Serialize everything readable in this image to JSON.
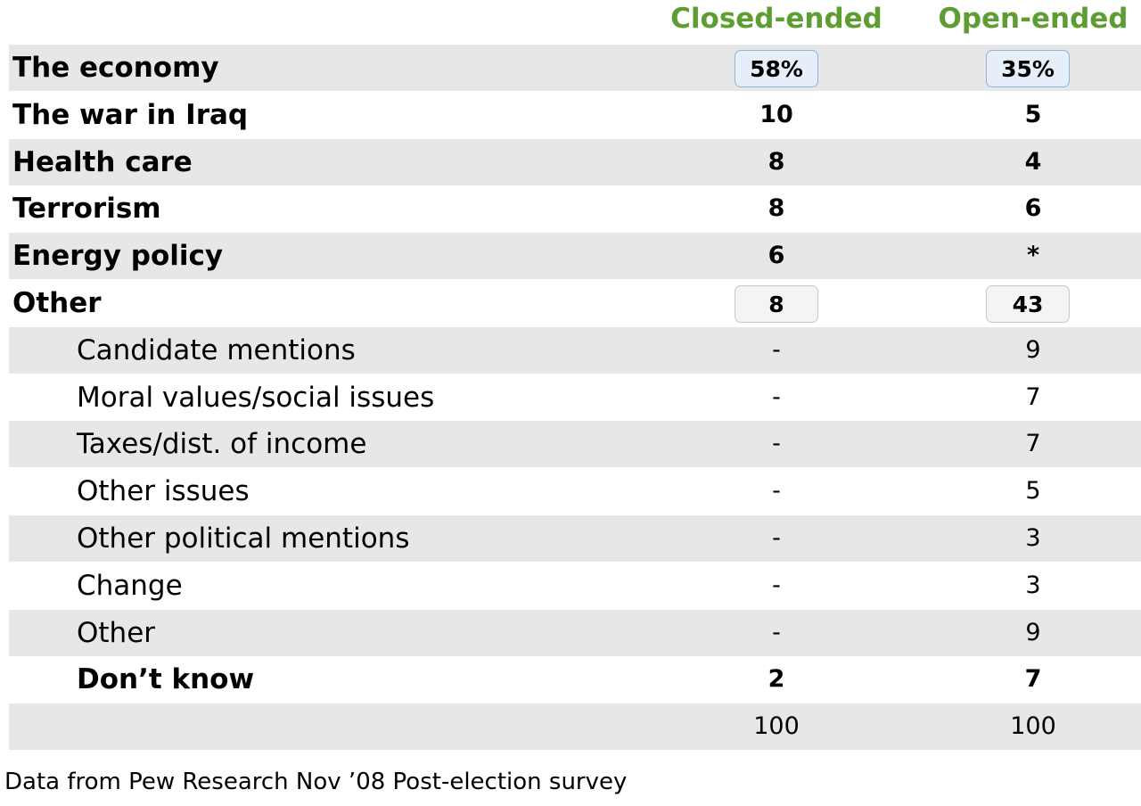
{
  "chart_data": {
    "type": "table",
    "columns": [
      "Closed-ended",
      "Open-ended"
    ],
    "rows": [
      {
        "label": "The economy",
        "level": 0,
        "closed": "58%",
        "open": "35%",
        "highlight": "blue"
      },
      {
        "label": "The war in Iraq",
        "level": 0,
        "closed": "10",
        "open": "5"
      },
      {
        "label": "Health care",
        "level": 0,
        "closed": "8",
        "open": "4"
      },
      {
        "label": "Terrorism",
        "level": 0,
        "closed": "8",
        "open": "6"
      },
      {
        "label": "Energy policy",
        "level": 0,
        "closed": "6",
        "open": "*"
      },
      {
        "label": "Other",
        "level": 0,
        "closed": "8",
        "open": "43",
        "highlight": "gray"
      },
      {
        "label": "Candidate mentions",
        "level": 1,
        "closed": "-",
        "open": "9"
      },
      {
        "label": "Moral values/social issues",
        "level": 1,
        "closed": "-",
        "open": "7"
      },
      {
        "label": "Taxes/dist. of income",
        "level": 1,
        "closed": "-",
        "open": "7"
      },
      {
        "label": "Other issues",
        "level": 1,
        "closed": "-",
        "open": "5"
      },
      {
        "label": "Other political mentions",
        "level": 1,
        "closed": "-",
        "open": "3"
      },
      {
        "label": "Change",
        "level": 1,
        "closed": "-",
        "open": "3"
      },
      {
        "label": "Other",
        "level": 1,
        "closed": "-",
        "open": "9"
      },
      {
        "label": "Don’t know",
        "level": 1,
        "bold": true,
        "closed": "2",
        "open": "7"
      },
      {
        "label": "",
        "level": 0,
        "closed": "100",
        "open": "100",
        "total": true
      }
    ],
    "footnote": "Data from Pew Research Nov ’08 Post-election survey"
  },
  "colors": {
    "header": "#5d9d31",
    "row_shade": "#e7e7e7",
    "highlight_blue_fill": "#e6eff9",
    "highlight_blue_border": "#8fb3d9",
    "highlight_gray_fill": "#f4f4f4",
    "highlight_gray_border": "#c8c8c8"
  }
}
